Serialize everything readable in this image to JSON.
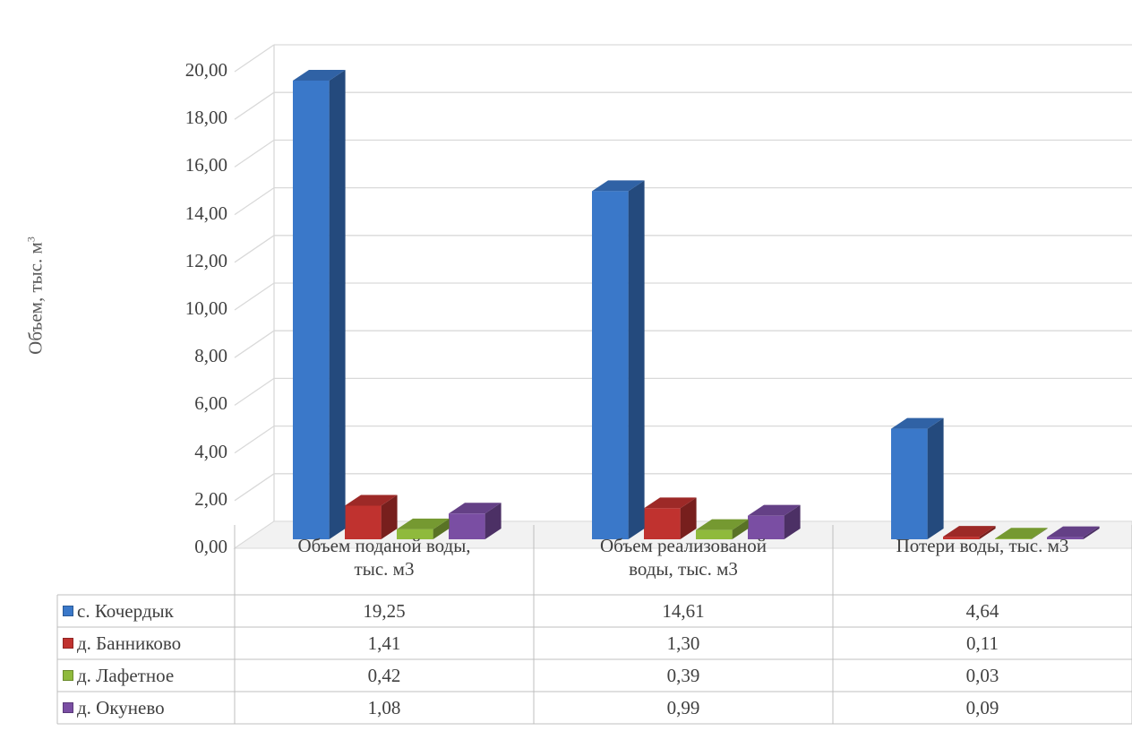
{
  "chart_data": {
    "type": "bar",
    "title": "",
    "xlabel": "",
    "ylabel": "Объем, тыс. м",
    "ylabel_superscript": "3",
    "ylim": [
      0,
      20
    ],
    "yticks": [
      "0,00",
      "2,00",
      "4,00",
      "6,00",
      "8,00",
      "10,00",
      "12,00",
      "14,00",
      "16,00",
      "18,00",
      "20,00"
    ],
    "grid": true,
    "legend": "data-table",
    "categories": [
      "Объем поданой воды, тыс. м3",
      "Объем реализованой воды, тыс. м3",
      "Потери воды, тыс. м3"
    ],
    "category_lines": [
      [
        "Объем поданой воды,",
        "тыс. м3"
      ],
      [
        "Объем реализованой",
        "воды, тыс. м3"
      ],
      [
        "Потери воды, тыс. м3"
      ]
    ],
    "series": [
      {
        "name": "с. Кочердык",
        "color": "#3a78c9",
        "values": [
          19.25,
          14.61,
          4.64
        ],
        "labels": [
          "19,25",
          "14,61",
          "4,64"
        ]
      },
      {
        "name": "д. Банниково",
        "color": "#c0322f",
        "values": [
          1.41,
          1.3,
          0.11
        ],
        "labels": [
          "1,41",
          "1,30",
          "0,11"
        ]
      },
      {
        "name": "д. Лафетное",
        "color": "#8fba3c",
        "values": [
          0.42,
          0.39,
          0.03
        ],
        "labels": [
          "0,42",
          "0,39",
          "0,03"
        ]
      },
      {
        "name": "д. Окунево",
        "color": "#7a4ea3",
        "values": [
          1.08,
          0.99,
          0.09
        ],
        "labels": [
          "1,08",
          "0,99",
          "0,09"
        ]
      }
    ]
  }
}
